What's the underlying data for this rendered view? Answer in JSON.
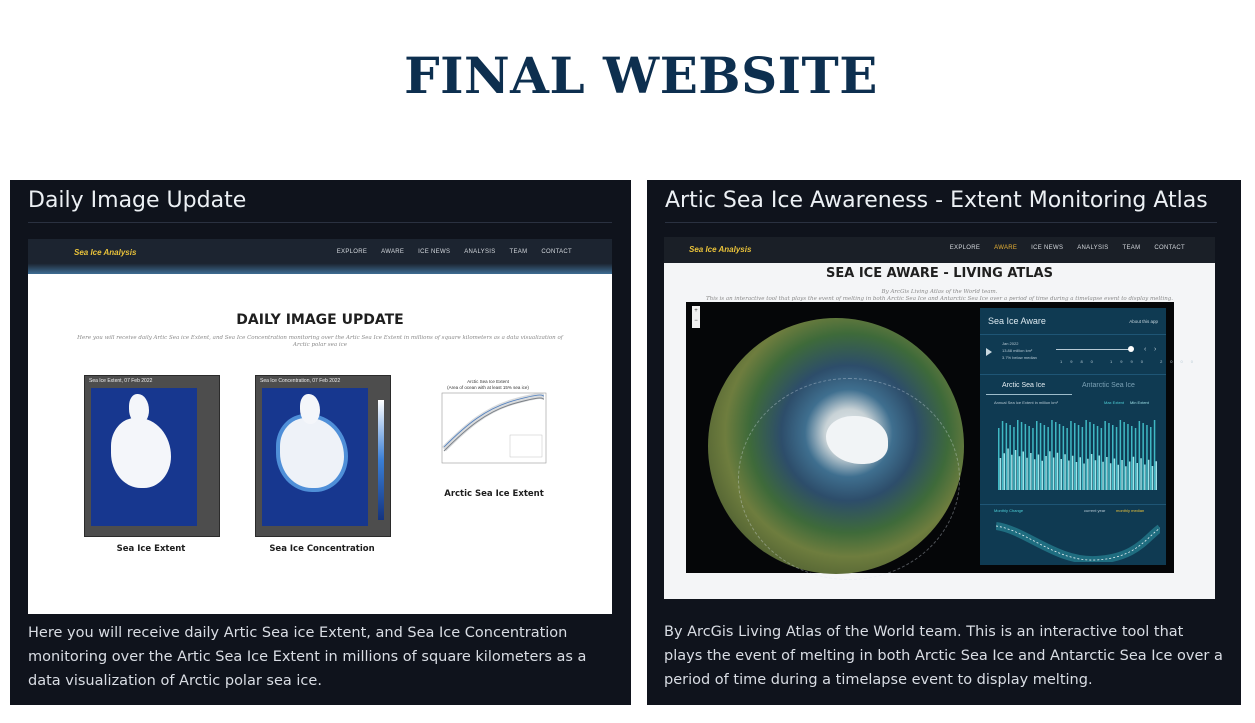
{
  "page": {
    "title": "FINAL WEBSITE"
  },
  "cards": [
    {
      "heading": "Daily Image Update",
      "description": "Here you will receive daily Artic Sea ice Extent, and Sea Ice Concentration monitoring over the Artic Sea Ice Extent in millions of square kilometers as a data visualization of Arctic polar sea ice.",
      "screenshot": {
        "brand": "Sea Ice Analysis",
        "nav": [
          "EXPLORE",
          "AWARE",
          "ICE NEWS",
          "ANALYSIS",
          "TEAM",
          "CONTACT"
        ],
        "heading": "DAILY IMAGE UPDATE",
        "subtitle": "Here you will receive daily Artic Sea ice Extent, and Sea Ice Concentration monitoring over the Artic Sea Ice Extent in millions of square kilometers as a data visualization of Arctic polar sea ice",
        "panels": [
          {
            "map_label": "Sea Ice Extent, 07 Feb 2022",
            "caption": "Sea Ice Extent"
          },
          {
            "map_label": "Sea Ice Concentration, 07 Feb 2022",
            "caption": "Sea Ice Concentration"
          }
        ],
        "chart": {
          "title": "Arctic Sea Ice Extent",
          "subtitle": "(Area of ocean with at least 15% sea ice)",
          "caption": "Arctic Sea Ice Extent"
        }
      }
    },
    {
      "heading": "Artic Sea Ice Awareness - Extent Monitoring Atlas",
      "description": "By ArcGis Living Atlas of the World team. This is an interactive tool that plays the event of melting in both Arctic Sea Ice and Antarctic Sea Ice over a period of time during a timelapse event to display melting.",
      "screenshot": {
        "brand": "Sea Ice Analysis",
        "nav": [
          "EXPLORE",
          "AWARE",
          "ICE NEWS",
          "ANALYSIS",
          "TEAM",
          "CONTACT"
        ],
        "nav_active": "AWARE",
        "heading": "SEA ICE AWARE - LIVING ATLAS",
        "subtitle_line1": "By ArcGis Living Atlas of the World team.",
        "subtitle_line2": "This is an interactive tool that plays the event of melting in both Arctic Sea Ice and Antarctic Sea Ice over a period of time during a timelapse event to display melting.",
        "panel": {
          "title": "Sea Ice Aware",
          "about": "About this app",
          "date": "Jan 2022",
          "value": "13.88 million km²",
          "delta": "3.7% below median",
          "years": [
            "1980",
            "1990",
            "2000",
            "2010",
            "2020"
          ],
          "tabs": [
            "Arctic Sea Ice",
            "Antarctic Sea Ice"
          ],
          "chart_label": "Annual Sea Ice Extent in million km²",
          "legend": [
            "Max Extent",
            "Min Extent"
          ],
          "monthly_label": "Monthly Change",
          "monthly_legend": [
            "current year",
            "monthly median"
          ]
        }
      }
    }
  ]
}
